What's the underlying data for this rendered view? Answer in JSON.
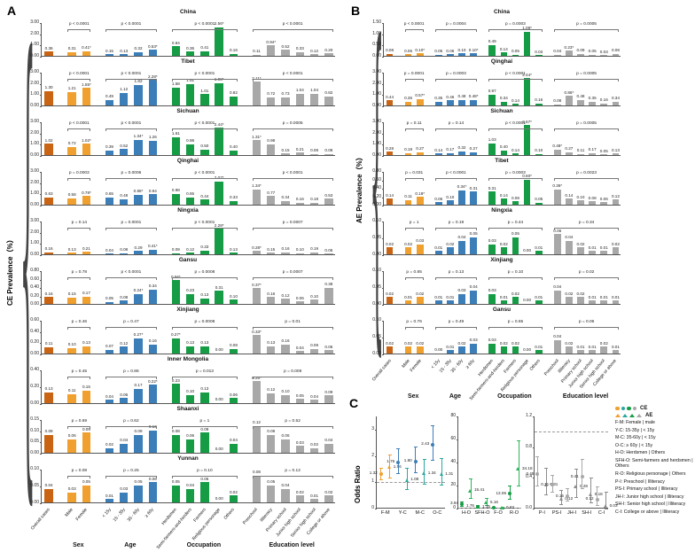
{
  "figure": {
    "panel_a_label": "A",
    "panel_b_label": "B",
    "panel_c_label": "C",
    "panel_a_ylabel": "CE Prevalence（%）",
    "panel_b_ylabel": "AE Prevalence（%）",
    "panel_c_ylabel": "Odds Ratio",
    "brace_glyph": "{"
  },
  "colors": {
    "overall": "#C86414",
    "sex": "#EFA02F",
    "age": "#3C7EB8",
    "occupation": "#169C45",
    "education": "#A8A8A8",
    "axis": "#555555"
  },
  "chart_data": [
    {
      "id": "A",
      "type": "bar",
      "title": "CE Prevalence by region and subgroup",
      "ylabel": "CE Prevalence（%）",
      "categories": [
        "Overall cases",
        "Male",
        "Female",
        "< 15y",
        "15 - 35y",
        "35 - 60y",
        "≥ 60y",
        "Herdsmen",
        "Semi-farmers-and-herders",
        "Farmers",
        "Religious personage",
        "Others",
        "Preschool",
        "Illiteracy",
        "Primary school",
        "Junior high school",
        "Senior high school",
        "College or above"
      ],
      "group_labels": [
        "Sex",
        "Age",
        "Occupation",
        "Education level"
      ],
      "subplots": [
        {
          "region": "China",
          "ymax": 3,
          "step": 1,
          "values": [
            "0.36",
            "0.31",
            "0.41*",
            "0.15",
            "0.13",
            "0.32",
            "0.53*",
            "0.84",
            "0.36",
            "0.41",
            "2.56*",
            "0.16",
            "0.11",
            "0.94*",
            "0.52",
            "0.33",
            "0.12",
            "0.20"
          ],
          "pvalues": [
            "p < 0.0001",
            "p < 0.0001",
            "p < 0.0001",
            "p < 0.0001"
          ]
        },
        {
          "region": "Tibet",
          "ymax": 3,
          "step": 1,
          "values": [
            "1.30",
            "1.21",
            "1.55*",
            "0.49",
            "1.12",
            "1.82",
            "2.28*",
            "1.58",
            "1.91",
            "1.01",
            "1.98*",
            "0.82",
            "2.11*",
            "0.72",
            "0.73",
            "1.04",
            "1.04",
            "0.82"
          ],
          "pvalues": [
            "p < 0.0001",
            "p < 0.0001",
            "p < 0.0001",
            "p < 0.0001"
          ]
        },
        {
          "region": "Sichuan",
          "ymax": 3,
          "step": 1,
          "values": [
            "1.02",
            "0.72",
            "1.02*",
            "0.39",
            "0.52",
            "1.34*",
            "1.26",
            "1.61",
            "0.98",
            "0.50",
            "2.44*",
            "0.40",
            "1.31*",
            "0.98",
            "0.15",
            "0.21",
            "0.08",
            "0.08"
          ],
          "pvalues": [
            "p < 0.0001",
            "p < 0.0001",
            "p < 0.0001",
            "p = 0.0005"
          ]
        },
        {
          "region": "Qinghai",
          "ymax": 3,
          "step": 1,
          "values": [
            "0.63",
            "0.58",
            "0.78*",
            "0.65",
            "0.48",
            "0.88*",
            "0.94",
            "0.98",
            "0.65",
            "0.44",
            "2.07*",
            "0.33",
            "1.34*",
            "0.77",
            "0.34",
            "0.16",
            "0.18",
            "0.53"
          ],
          "pvalues": [
            "p = 0.0003",
            "p = 0.0006",
            "p < 0.0001",
            "p < 0.0001"
          ]
        },
        {
          "region": "Ningxia",
          "ymax": 3,
          "step": 1,
          "values": [
            "0.16",
            "0.13",
            "0.21",
            "0.04",
            "0.08",
            "0.29",
            "0.41*",
            "0.09",
            "0.12",
            "0.33",
            "2.28*",
            "0.13",
            "0.28*",
            "0.15",
            "0.16",
            "0.10",
            "0.19",
            "0.05"
          ],
          "pvalues": [
            "p = 0.14",
            "p = 0.0001",
            "p < 0.0001",
            "p = 0.0007"
          ]
        },
        {
          "region": "Gansu",
          "ymax": 0.8,
          "step": 0.2,
          "values": [
            "0.16",
            "0.15",
            "0.17",
            "0.05",
            "0.08",
            "0.24*",
            "0.34",
            "0.56*",
            "0.23",
            "0.13",
            "0.31",
            "0.10",
            "0.37*",
            "0.16",
            "0.12",
            "0.06",
            "0.10",
            "0.38"
          ],
          "pvalues": [
            "p = 0.78",
            "p < 0.0001",
            "p = 0.0008",
            "p = 0.0007"
          ]
        },
        {
          "region": "Xinjiang",
          "ymax": 0.6,
          "step": 0.2,
          "values": [
            "0.11",
            "0.10",
            "0.13",
            "0.07",
            "0.12",
            "0.27*",
            "0.16",
            "0.27*",
            "0.13",
            "0.13",
            "0.00",
            "0.08",
            "0.33*",
            "0.13",
            "0.16",
            "0.04",
            "0.08",
            "0.06"
          ],
          "pvalues": [
            "p = 0.46",
            "p = 0.47",
            "p = 0.0008",
            "p = 0.01"
          ]
        },
        {
          "region": "Inner Mongolia",
          "ymax": 0.4,
          "step": 0.2,
          "values": [
            "0.13",
            "0.11",
            "0.15",
            "0.04",
            "0.06",
            "0.17",
            "0.22*",
            "0.23",
            "0.10",
            "0.13",
            "0.00",
            "0.06",
            "0.26*",
            "0.12",
            "0.10",
            "0.05",
            "0.04",
            "0.09"
          ],
          "pvalues": [
            "p = 0.45",
            "p = 0.86",
            "p = 0.013",
            "p = 0.009"
          ]
        },
        {
          "region": "Shaanxi",
          "ymax": 0.15,
          "step": 0.05,
          "values": [
            "0.08",
            "0.06",
            "0.09",
            "0.02",
            "0.04",
            "0.08",
            "0.10",
            "0.08",
            "0.06",
            "0.09",
            "0.00",
            "0.04",
            "0.12",
            "0.08",
            "0.06",
            "0.03",
            "0.02",
            "0.04"
          ],
          "pvalues": [
            "p = 0.69",
            "p = 0.62",
            "p = 1",
            "p = 0.52"
          ]
        },
        {
          "region": "Yunnan",
          "ymax": 0.1,
          "step": 0.05,
          "values": [
            "0.04",
            "0.03",
            "0.05",
            "0.01",
            "0.03",
            "0.05",
            "0.06",
            "0.05",
            "0.04",
            "0.06",
            "0.00",
            "0.02",
            "0.08",
            "0.05",
            "0.04",
            "0.02",
            "0.01",
            "0.02"
          ],
          "pvalues": [
            "p = 0.08",
            "p = 0.25",
            "p = 0.10",
            "p = 0.12"
          ]
        }
      ]
    },
    {
      "id": "B",
      "type": "bar",
      "title": "AE Prevalence by region and subgroup",
      "ylabel": "AE Prevalence（%）",
      "categories": [
        "Overall cases",
        "Male",
        "Female",
        "< 15y",
        "15 - 35y",
        "35 - 60y",
        "≥ 60y",
        "Herdsmen",
        "Semi-farmers-and-herders",
        "Farmers",
        "Religious personage",
        "Others",
        "Preschool",
        "Illiteracy",
        "Primary school",
        "Junior high school",
        "Senior high school",
        "College or above"
      ],
      "group_labels": [
        "Sex",
        "Age",
        "Occupation",
        "Education level"
      ],
      "subplots": [
        {
          "region": "China",
          "ymax": 1.5,
          "step": 0.5,
          "values": [
            "0.08",
            "0.06",
            "0.10*",
            "0.05",
            "0.06",
            "0.10",
            "0.10*",
            "0.49",
            "0.14",
            "0.05",
            "1.08*",
            "0.03",
            "0.04",
            "0.23*",
            "0.09",
            "0.05",
            "0.03",
            "0.08"
          ],
          "pvalues": [
            "p < 0.0001",
            "p = 0.0004",
            "p = 0.0003",
            "p = 0.0005"
          ]
        },
        {
          "region": "Qinghai",
          "ymax": 3,
          "step": 1,
          "values": [
            "0.44",
            "0.35",
            "0.57*",
            "0.35",
            "0.46",
            "0.48",
            "0.48*",
            "0.97",
            "0.34",
            "0.14",
            "2.44*",
            "0.16",
            "0.08",
            "0.86*",
            "0.48",
            "0.35",
            "0.16",
            "0.34"
          ],
          "pvalues": [
            "p = 0.0001",
            "p = 0.0003",
            "p < 0.0001",
            "p = 0.0005"
          ]
        },
        {
          "region": "Sichuan",
          "ymax": 3,
          "step": 1,
          "values": [
            "0.28",
            "0.18",
            "0.27",
            "0.14",
            "0.17",
            "0.32",
            "0.27",
            "1.03",
            "0.40",
            "0.14",
            "2.67*",
            "0.10",
            "0.48*",
            "0.27",
            "0.11",
            "0.17",
            "0.05",
            "0.13"
          ],
          "pvalues": [
            "p = 0.11",
            "p = 0.14",
            "p < 0.0001",
            "p = 0.0005"
          ]
        },
        {
          "region": "Tibet",
          "ymax": 0.8,
          "step": 0.2,
          "values": [
            "0.14",
            "0.11",
            "0.18*",
            "0.06",
            "0.10",
            "0.34*",
            "0.31",
            "0.31",
            "0.14",
            "0.08",
            "0.60*",
            "0.05",
            "0.36*",
            "0.14",
            "0.10",
            "0.08",
            "0.06",
            "0.12"
          ],
          "pvalues": [
            "p = 0.031",
            "p < 0.0001",
            "p = 0.0003",
            "p = 0.0023"
          ]
        },
        {
          "region": "Ningxia",
          "ymax": 0.1,
          "step": 0.05,
          "values": [
            "0.02",
            "0.02",
            "0.03",
            "0.01",
            "0.02",
            "0.04",
            "0.05",
            "0.03",
            "0.02",
            "0.05",
            "0.00",
            "0.01",
            "0.06",
            "0.04",
            "0.02",
            "0.01",
            "0.01",
            "0.02"
          ],
          "pvalues": [
            "p = 1",
            "p = 0.19",
            "p = 0.44",
            "p = 0.34"
          ]
        },
        {
          "region": "Xinjiang",
          "ymax": 0.1,
          "step": 0.05,
          "values": [
            "0.02",
            "0.01",
            "0.02",
            "0.01",
            "0.01",
            "0.03",
            "0.04",
            "0.03",
            "0.01",
            "0.02",
            "0.00",
            "0.01",
            "0.04",
            "0.02",
            "0.02",
            "0.01",
            "0.01",
            "0.01"
          ],
          "pvalues": [
            "p = 0.85",
            "p = 0.13",
            "p = 0.10",
            "p = 0.02"
          ]
        },
        {
          "region": "Gansu",
          "ymax": 0.1,
          "step": 0.05,
          "values": [
            "0.02",
            "0.02",
            "0.02",
            "0.00",
            "0.01",
            "0.02",
            "0.03",
            "0.03",
            "0.02",
            "0.02",
            "0.00",
            "0.01",
            "0.04",
            "0.02",
            "0.01",
            "0.01",
            "0.02",
            "0.01"
          ],
          "pvalues": [
            "p = 0.76",
            "p = 0.49",
            "p = 0.65",
            "p = 0.06"
          ]
        }
      ]
    },
    {
      "id": "C",
      "type": "scatter",
      "title": "Odds Ratio forest plots",
      "ylabel": "Odds Ratio",
      "subplots": [
        {
          "categories": [
            "F-M",
            "Y-C",
            "M-C",
            "O-C"
          ],
          "ymax": 3.5,
          "ref": 1,
          "ticks": [
            "0",
            "1",
            "2",
            "3"
          ],
          "ce_colors": [
            "#EFA02F",
            "#3C7EB8",
            "#3C7EB8",
            "#3C7EB8"
          ],
          "ae_colors": [
            "#EFA02F",
            "#2AA7A0",
            "#2AA7A0",
            "#2AA7A0"
          ],
          "ce": [
            {
              "v": 1.32,
              "lo": 1.12,
              "hi": 1.55
            },
            {
              "v": 1.76,
              "lo": 1.35,
              "hi": 2.3
            },
            {
              "v": 1.8,
              "lo": 1.38,
              "hi": 2.35
            },
            {
              "v": 2.43,
              "lo": 1.86,
              "hi": 3.18
            }
          ],
          "ae": [
            {
              "v": 1.56,
              "lo": 1.18,
              "hi": 2.06
            },
            {
              "v": 1.08,
              "lo": 0.75,
              "hi": 1.55
            },
            {
              "v": 1.34,
              "lo": 0.95,
              "hi": 1.9
            },
            {
              "v": 1.31,
              "lo": 0.9,
              "hi": 1.92
            }
          ]
        },
        {
          "categories": [
            "H-O",
            "SFH-O",
            "F-O",
            "R-O"
          ],
          "ymax": 80,
          "ref": 1,
          "ticks": [
            "0",
            "20",
            "40",
            "60",
            "80"
          ],
          "ce_colors": [
            "#169C45",
            "#169C45",
            "#169C45",
            "#169C45"
          ],
          "ae_colors": [
            "#2FB45D",
            "#2FB45D",
            "#2FB45D",
            "#2FB45D"
          ],
          "ce": [
            {
              "v": 3.94,
              "lo": 2.6,
              "hi": 6.0
            },
            {
              "v": 1.76,
              "lo": 1.1,
              "hi": 2.8
            },
            {
              "v": 1.15,
              "lo": 0.8,
              "hi": 1.7
            },
            {
              "v": 13.06,
              "lo": 8.5,
              "hi": 20.1
            }
          ],
          "ae": [
            {
              "v": 15.41,
              "lo": 9.0,
              "hi": 26.4
            },
            {
              "v": 5.16,
              "lo": 2.8,
              "hi": 9.5
            },
            {
              "v": 0.63,
              "lo": 0.3,
              "hi": 1.3
            },
            {
              "v": 34.18,
              "lo": 19.8,
              "hi": 59.0
            }
          ]
        },
        {
          "categories": [
            "P-I",
            "PS-I",
            "JH-I",
            "SH-I",
            "C-I"
          ],
          "ymax": 1.2,
          "ref": 1,
          "ticks": [
            "0.0",
            "0.4",
            "0.8",
            "1.2"
          ],
          "ce_colors": [
            "#A8A8A8",
            "#A8A8A8",
            "#A8A8A8",
            "#A8A8A8",
            "#A8A8A8"
          ],
          "ae_colors": [
            "#8C8C8C",
            "#8C8C8C",
            "#8C8C8C",
            "#8C8C8C",
            "#8C8C8C"
          ],
          "ce": [
            {
              "v": 0.45,
              "lo": 0.3,
              "hi": 0.68
            },
            {
              "v": 0.31,
              "lo": 0.22,
              "hi": 0.44
            },
            {
              "v": 0.16,
              "lo": 0.1,
              "hi": 0.26
            },
            {
              "v": 0.41,
              "lo": 0.26,
              "hi": 0.65
            },
            {
              "v": 0.12,
              "lo": 0.05,
              "hi": 0.29
            }
          ],
          "ae": [
            {
              "v": 0.31,
              "lo": 0.18,
              "hi": 0.53
            },
            {
              "v": 0.12,
              "lo": 0.06,
              "hi": 0.24
            },
            {
              "v": 0.28,
              "lo": 0.15,
              "hi": 0.52
            },
            {
              "v": 0.18,
              "lo": 0.08,
              "hi": 0.4
            },
            {
              "v": 0.03,
              "lo": 0.0,
              "hi": 0.22
            }
          ]
        }
      ]
    }
  ],
  "legend": {
    "ce_label": "CE",
    "ae_label": "AE",
    "marker_colors": [
      "#EFA02F",
      "#2AA7A0",
      "#169C45",
      "#A8A8A8"
    ],
    "entries": [
      "F-M: Female | male",
      "Y-C: 15-35y | < 15y",
      "M-C: 35-60y | < 15y",
      "O-C: ≥ 60y | < 15y",
      "H-O: Herdsmen | Others",
      "SFH-O: Semi-farmers and herdsmen | Others",
      "R-O: Religious personage | Others",
      "P-I: Preschool | Illiteracy",
      "PS-I: Primary school | Illiteracy",
      "JH-I: Junior high school | Illiteracy",
      "SH-I: Senior high school | Illiteracy",
      "C-I: College or above | Illiteracy"
    ]
  }
}
